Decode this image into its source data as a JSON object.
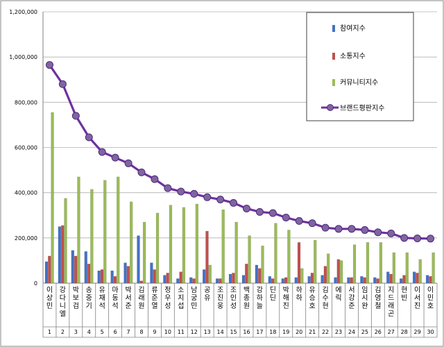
{
  "chart_data": {
    "type": "bar",
    "title": "",
    "xlabel": "",
    "ylabel": "",
    "ylim": [
      0,
      1200000
    ],
    "yticks": [
      "0",
      "200,000",
      "400,000",
      "600,000",
      "800,000",
      "1,000,000",
      "1,200,000"
    ],
    "grid": true,
    "legend_position": "top-right",
    "categories": [
      "이상민",
      "강다니엘",
      "박보검",
      "송중기",
      "유재석",
      "마동석",
      "박서준",
      "김래원",
      "류준열",
      "정우성",
      "소지섭",
      "남궁민",
      "공유",
      "조진웅",
      "조인성",
      "백종원",
      "강하늘",
      "딘딘",
      "박해진",
      "하하",
      "유승호",
      "김수현",
      "에릭",
      "서강준",
      "임시완",
      "김영철",
      "지드래곤",
      "현빈",
      "이서진",
      "이민호"
    ],
    "ranks": [
      "1",
      "2",
      "3",
      "4",
      "5",
      "6",
      "7",
      "8",
      "9",
      "10",
      "11",
      "12",
      "13",
      "14",
      "15",
      "16",
      "17",
      "18",
      "19",
      "20",
      "21",
      "22",
      "23",
      "24",
      "25",
      "26",
      "27",
      "28",
      "29",
      "30"
    ],
    "series": [
      {
        "name": "참여지수",
        "kind": "bar",
        "color": "#4472C4",
        "values": [
          95000,
          250000,
          145000,
          140000,
          55000,
          55000,
          90000,
          210000,
          90000,
          35000,
          20000,
          25000,
          60000,
          20000,
          40000,
          35000,
          80000,
          30000,
          20000,
          25000,
          30000,
          35000,
          25000,
          25000,
          30000,
          25000,
          50000,
          20000,
          50000,
          35000
        ]
      },
      {
        "name": "소통지수",
        "kind": "bar",
        "color": "#C0504D",
        "values": [
          120000,
          255000,
          120000,
          85000,
          60000,
          30000,
          75000,
          10000,
          60000,
          45000,
          50000,
          20000,
          230000,
          20000,
          45000,
          85000,
          65000,
          20000,
          25000,
          180000,
          45000,
          75000,
          105000,
          25000,
          25000,
          20000,
          40000,
          35000,
          45000,
          30000
        ]
      },
      {
        "name": "커뮤니티지수",
        "kind": "bar",
        "color": "#9BBB59",
        "values": [
          755000,
          375000,
          470000,
          415000,
          455000,
          470000,
          360000,
          270000,
          310000,
          345000,
          335000,
          350000,
          80000,
          325000,
          270000,
          210000,
          165000,
          265000,
          235000,
          65000,
          190000,
          130000,
          100000,
          170000,
          180000,
          180000,
          135000,
          135000,
          105000,
          135000
        ]
      },
      {
        "name": "브랜드평판지수",
        "kind": "line",
        "color": "#7030A0",
        "marker": "#8064A2",
        "values": [
          965000,
          880000,
          740000,
          645000,
          580000,
          555000,
          530000,
          490000,
          460000,
          420000,
          405000,
          395000,
          380000,
          370000,
          355000,
          330000,
          315000,
          310000,
          290000,
          275000,
          265000,
          245000,
          240000,
          240000,
          235000,
          225000,
          220000,
          200000,
          198000,
          197000
        ]
      }
    ]
  }
}
